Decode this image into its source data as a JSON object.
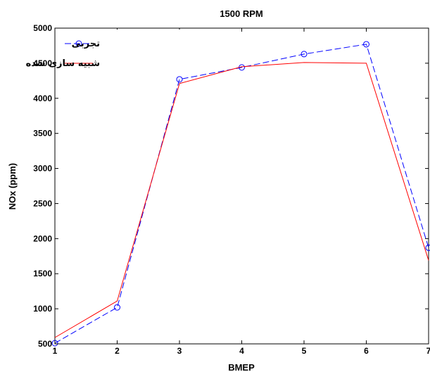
{
  "chart_data": {
    "type": "line",
    "title": "1500 RPM",
    "xlabel": "BMEP",
    "ylabel": "NOx (ppm)",
    "xlim": [
      1,
      7
    ],
    "ylim": [
      500,
      5000
    ],
    "xticks": [
      1,
      2,
      3,
      4,
      5,
      6,
      7
    ],
    "yticks": [
      500,
      1000,
      1500,
      2000,
      2500,
      3000,
      3500,
      4000,
      4500,
      5000
    ],
    "grid": false,
    "legend_position": "top-left",
    "series": [
      {
        "name": "تجربی",
        "color": "#0000ff",
        "line_style": "dashed",
        "marker": "circle",
        "x": [
          1,
          2,
          3,
          4,
          5,
          6,
          7
        ],
        "y": [
          510,
          1020,
          4270,
          4440,
          4630,
          4770,
          1870
        ]
      },
      {
        "name": "شبیه سازی شده",
        "color": "#ff0000",
        "line_style": "solid",
        "marker": "none",
        "x": [
          1,
          2,
          3,
          4,
          5,
          6,
          7
        ],
        "y": [
          590,
          1110,
          4210,
          4450,
          4510,
          4500,
          1690
        ]
      }
    ]
  }
}
